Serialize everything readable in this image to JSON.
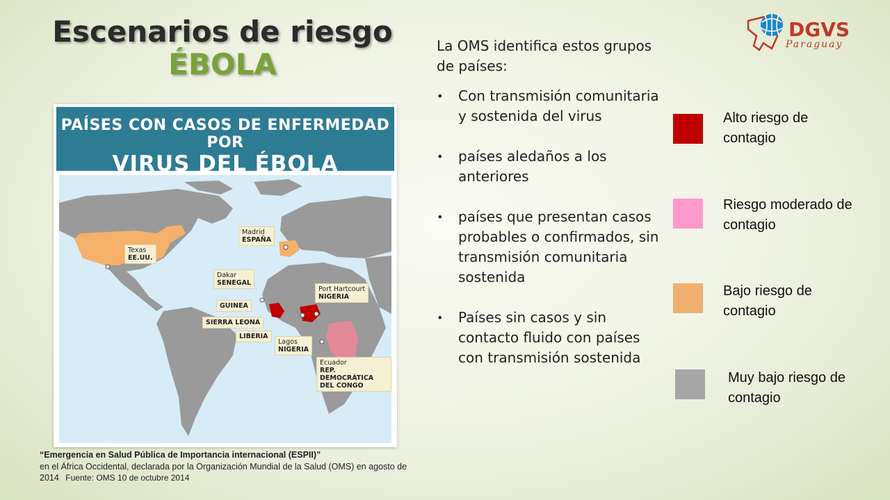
{
  "slide": {
    "title_line1": "Escenarios de riesgo",
    "title_line2": "ÉBOLA",
    "logo_text": "DGVS",
    "logo_sub": "Paraguay"
  },
  "map": {
    "header_line1": "PAÍSES CON CASOS DE ENFERMEDAD POR",
    "header_line2": "VIRUS DEL ÉBOLA",
    "labels": {
      "texas_city": "Texas",
      "texas_country": "EE.UU.",
      "madrid_city": "Madrid",
      "madrid_country": "ESPAÑA",
      "dakar_city": "Dakar",
      "dakar_country": "SENEGAL",
      "port_city": "Port Hartcourt",
      "port_country": "NIGERIA",
      "guinea": "GUINEA",
      "sierra": "SIERRA LEONA",
      "liberia": "LIBERIA",
      "lagos_city": "Lagos",
      "lagos_country": "NIGERIA",
      "ecuador_city": "Ecuador",
      "congo_line1": "REP. DEMOCRÁTICA",
      "congo_line2": "DEL CONGO"
    }
  },
  "intro": "La OMS identifica estos grupos de países:",
  "bullets": [
    "Con transmisión comunitaria y sostenida del virus",
    "países aledaños a los anteriores",
    "países que presentan casos probables o confirmados, sin transmisión comunitaria sostenida",
    "Países sin casos y sin contacto fluido con países con transmisión sostenida"
  ],
  "legend": [
    {
      "label": "Alto riesgo de contagio",
      "color": "#c00000"
    },
    {
      "label": "Riesgo moderado de contagio",
      "color": "#ff99cc"
    },
    {
      "label": "Bajo riesgo de contagio",
      "color": "#f0b070"
    },
    {
      "label": "Muy bajo riesgo de contagio",
      "color": "#a6a6a6"
    }
  ],
  "footer": {
    "bold": "“Emergencia en Salud Pública de Importancia internacional (ESPII)”",
    "line": "en el África Occidental, declarada por la Organización Mundial de la Salud (OMS) en agosto de 2014",
    "source": "Fuente: OMS 10 de octubre 2014"
  }
}
